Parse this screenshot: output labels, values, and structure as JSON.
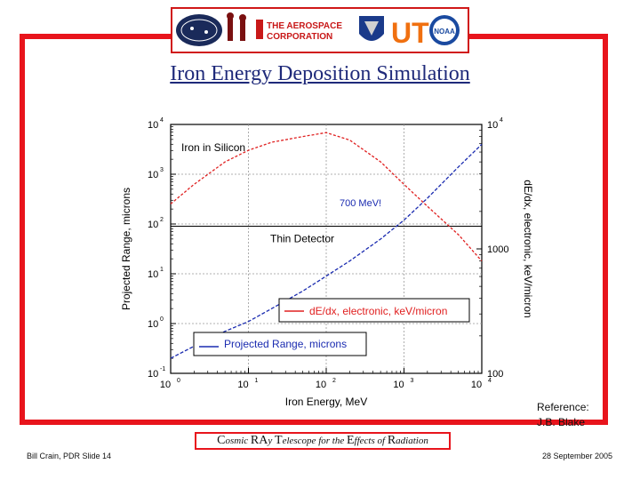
{
  "slide": {
    "title": "Iron Energy Deposition Simulation",
    "reference_line1": "Reference:",
    "reference_line2": "J.B. Blake",
    "footer_left": "Bill Crain, PDR Slide 14",
    "footer_right": "28 September 2005",
    "footer_center": [
      {
        "cap": "C",
        "rest": "osmic "
      },
      {
        "cap": "RA",
        "rest": "y "
      },
      {
        "cap": "T",
        "rest": "elescope for the "
      },
      {
        "cap": "E",
        "rest": "ffects of "
      },
      {
        "cap": "R",
        "rest": "adiation"
      }
    ],
    "logos": {
      "aerospace_line1": "THE AEROSPACE",
      "aerospace_line2": "CORPORATION",
      "ut": "UT",
      "noaa": "NOAA"
    }
  },
  "colors": {
    "frame": "#e8141c",
    "title": "#1f2a7a",
    "range_series": "#1a2bb0",
    "dedx_series": "#e02020",
    "annotation_700": "#1a2bb0"
  },
  "chart_data": {
    "type": "line",
    "scale": "log-log",
    "xlabel": "Iron Energy, MeV",
    "ylabel_left": "Projected Range, microns",
    "ylabel_right": "dE/dx, electronic, keV/micron",
    "xlim": [
      1,
      10000
    ],
    "ylim_left": [
      0.1,
      10000
    ],
    "ylim_right": [
      100,
      10000
    ],
    "x_ticks": [
      {
        "mant": "10",
        "exp": "0"
      },
      {
        "mant": "10",
        "exp": "1"
      },
      {
        "mant": "10",
        "exp": "2"
      },
      {
        "mant": "10",
        "exp": "3"
      },
      {
        "mant": "10",
        "exp": "4"
      }
    ],
    "y_ticks_left": [
      {
        "mant": "10",
        "exp": "-1"
      },
      {
        "mant": "10",
        "exp": "0"
      },
      {
        "mant": "10",
        "exp": "1"
      },
      {
        "mant": "10",
        "exp": "2"
      },
      {
        "mant": "10",
        "exp": "3"
      },
      {
        "mant": "10",
        "exp": "4"
      }
    ],
    "y_ticks_right": [
      {
        "mant": "100",
        "exp": ""
      },
      {
        "mant": "1000",
        "exp": ""
      },
      {
        "mant": "10",
        "exp": "4"
      }
    ],
    "annotations": {
      "material": "Iron in Silicon",
      "detector": "Thin Detector",
      "energy": "700 MeV!"
    },
    "thin_detector_level": 90,
    "series": [
      {
        "name": "Projected Range, microns",
        "axis": "left",
        "x": [
          1,
          2,
          5,
          10,
          20,
          50,
          100,
          200,
          500,
          1000,
          2000,
          5000,
          10000
        ],
        "y": [
          0.2,
          0.35,
          0.7,
          1.1,
          2,
          4.5,
          9,
          18,
          50,
          120,
          330,
          1400,
          4000
        ]
      },
      {
        "name": "dE/dx, electronic, keV/micron",
        "axis": "right",
        "x": [
          1,
          2,
          5,
          10,
          20,
          50,
          100,
          200,
          500,
          1000,
          2000,
          5000,
          10000
        ],
        "y": [
          2300,
          3300,
          5000,
          6200,
          7200,
          8000,
          8600,
          7500,
          5000,
          3300,
          2200,
          1300,
          800
        ]
      }
    ]
  }
}
